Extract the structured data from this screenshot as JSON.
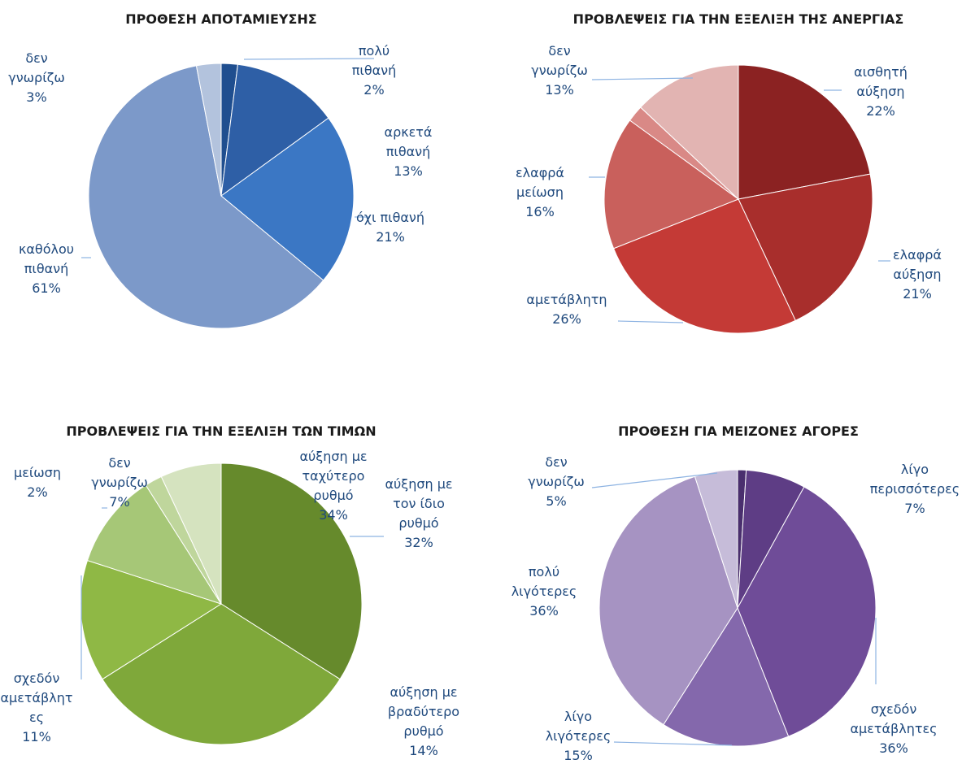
{
  "chart_data": [
    {
      "type": "pie",
      "title": "ΠΡΟΘΕΣΗ ΑΠΟΤΑΜΙΕΥΣΗΣ",
      "label_color": "#1F497D",
      "slices": [
        {
          "label": [
            "πολύ",
            "πιθανή"
          ],
          "pct": "2%",
          "value": 2,
          "color": "#1F4E8F"
        },
        {
          "label": [
            "αρκετά",
            "πιθανή"
          ],
          "pct": "13%",
          "value": 13,
          "color": "#2E5FA6"
        },
        {
          "label": [
            "όχι πιθανή"
          ],
          "pct": "21%",
          "value": 21,
          "color": "#3B77C4"
        },
        {
          "label": [
            "καθόλου",
            "πιθανή"
          ],
          "pct": "61%",
          "value": 61,
          "color": "#7C99C9"
        },
        {
          "label": [
            "δεν",
            "γνωρίζω"
          ],
          "pct": "3%",
          "value": 3,
          "color": "#B3C3DD"
        }
      ]
    },
    {
      "type": "pie",
      "title": "ΠΡΟΒΛΕΨΕΙΣ ΓΙΑ ΤΗΝ ΕΞΕΛΙΞΗ ΤΗΣ ΑΝΕΡΓΙΑΣ",
      "label_color": "#1F497D",
      "slices": [
        {
          "label": [
            "αισθητή",
            "αύξηση"
          ],
          "pct": "22%",
          "value": 22,
          "color": "#8B2222"
        },
        {
          "label": [
            "ελαφρά",
            "αύξηση"
          ],
          "pct": "21%",
          "value": 21,
          "color": "#A82E2C"
        },
        {
          "label": [
            "αμετάβλητη"
          ],
          "pct": "26%",
          "value": 26,
          "color": "#C43A36"
        },
        {
          "label": [
            "ελαφρά",
            "μείωση"
          ],
          "pct": "16%",
          "value": 16,
          "color": "#C9605C"
        },
        {
          "label": [],
          "pct": "",
          "value": 2,
          "color": "#D98986"
        },
        {
          "label": [
            "δεν",
            "γνωρίζω"
          ],
          "pct": "13%",
          "value": 13,
          "color": "#E2B4B2"
        }
      ]
    },
    {
      "type": "pie",
      "title": "ΠΡΟΒΛΕΨΕΙΣ ΓΙΑ ΤΗΝ ΕΞΕΛΙΞΗ ΤΩΝ ΤΙΜΩΝ",
      "label_color": "#1F497D",
      "slices": [
        {
          "label": [
            "αύξηση με",
            "ταχύτερο",
            "ρυθμό"
          ],
          "pct": "34%",
          "value": 34,
          "color": "#668A2C"
        },
        {
          "label": [
            "αύξηση με",
            "τον ίδιο",
            "ρυθμό"
          ],
          "pct": "32%",
          "value": 32,
          "color": "#7FA83A"
        },
        {
          "label": [
            "αύξηση με",
            "βραδύτερο",
            "ρυθμό"
          ],
          "pct": "14%",
          "value": 14,
          "color": "#8FB845"
        },
        {
          "label": [
            "σχεδόν",
            "αμετάβλητ",
            "ες"
          ],
          "pct": "11%",
          "value": 11,
          "color": "#A6C777"
        },
        {
          "label": [
            "μείωση"
          ],
          "pct": "2%",
          "value": 2,
          "color": "#BFD69C"
        },
        {
          "label": [
            "δεν",
            "γνωρίζω"
          ],
          "pct": "7%",
          "value": 7,
          "color": "#D5E3BF"
        }
      ]
    },
    {
      "type": "pie",
      "title": "ΠΡΟΘΕΣΗ ΓΙΑ ΜΕΙΖΟΝΕΣ ΑΓΟΡΕΣ",
      "label_color": "#1F497D",
      "slices": [
        {
          "label": [],
          "pct": "",
          "value": 1,
          "color": "#4A2F6E"
        },
        {
          "label": [
            "λίγο",
            "περισσότερες"
          ],
          "pct": "7%",
          "value": 7,
          "color": "#5E3D85"
        },
        {
          "label": [
            "σχεδόν",
            "αμετάβλητες"
          ],
          "pct": "36%",
          "value": 36,
          "color": "#6F4C98"
        },
        {
          "label": [
            "λίγο",
            "λιγότερες"
          ],
          "pct": "15%",
          "value": 15,
          "color": "#8468AC"
        },
        {
          "label": [
            "πολύ",
            "λιγότερες"
          ],
          "pct": "36%",
          "value": 36,
          "color": "#A693C2"
        },
        {
          "label": [
            "δεν",
            "γνωρίζω"
          ],
          "pct": "5%",
          "value": 5,
          "color": "#C6BCD9"
        }
      ]
    }
  ]
}
